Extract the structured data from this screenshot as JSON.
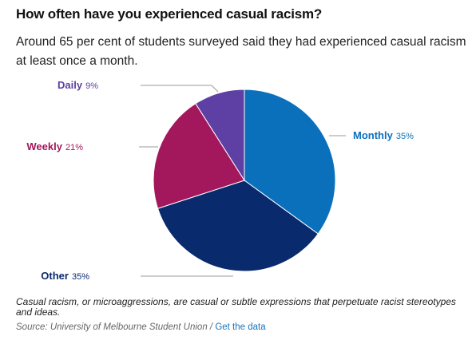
{
  "title": "How often have you experienced casual racism?",
  "subtitle": "Around 65 per cent of students surveyed said they had experienced casual racism at least once a month.",
  "footnote": "Casual racism, or microaggressions, are casual or subtle expressions that perpetuate racist stereotypes and ideas.",
  "source": {
    "text": "Source: University of Melbourne Student Union",
    "separator": " / ",
    "link_label": "Get the data"
  },
  "chart_data": {
    "type": "pie",
    "slices": [
      {
        "label": "Monthly",
        "value": 35,
        "value_label": "35%",
        "color": "#0a70bc"
      },
      {
        "label": "Other",
        "value": 35,
        "value_label": "35%",
        "color": "#0a2a6e"
      },
      {
        "label": "Weekly",
        "value": 21,
        "value_label": "21%",
        "color": "#a3175c"
      },
      {
        "label": "Daily",
        "value": 9,
        "value_label": "9%",
        "color": "#5e3fa3"
      }
    ],
    "start": "top",
    "direction": "clockwise"
  }
}
